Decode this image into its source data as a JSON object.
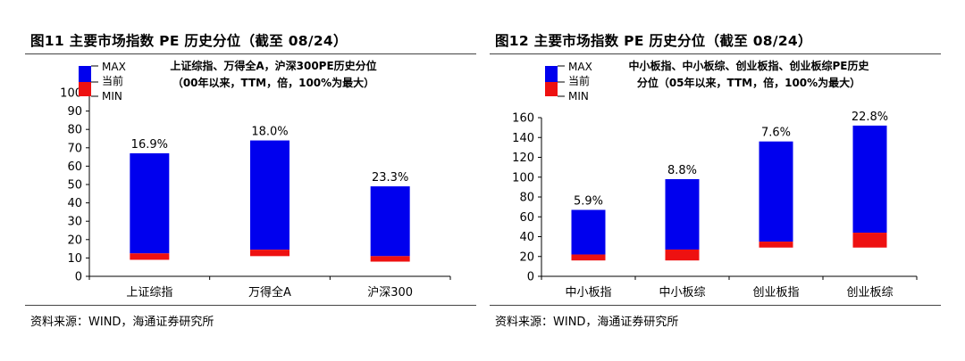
{
  "colors": {
    "max": "#0000EE",
    "min": "#EE1111",
    "axis": "#000000"
  },
  "chart_data": [
    {
      "type": "bar",
      "figure_title": "图11 主要市场指数 PE 历史分位（截至 08/24）",
      "source": "资料来源：WIND，海通证券研究所",
      "title_lines": [
        "上证综指、万得全A，沪深300PE历史分位",
        "（00年以来，TTM，倍，100%为最大）"
      ],
      "legend": [
        "MAX",
        "当前",
        "MIN"
      ],
      "categories": [
        "上证综指",
        "万得全A",
        "沪深300"
      ],
      "min_values": [
        9,
        11,
        8
      ],
      "current_values": [
        12.5,
        14.5,
        11
      ],
      "max_values": [
        67,
        74,
        49
      ],
      "percentile_labels": [
        "16.9%",
        "18.0%",
        "23.3%"
      ],
      "ylim": [
        0,
        100
      ],
      "yticks": [
        0,
        10,
        20,
        30,
        40,
        50,
        60,
        70,
        80,
        90,
        100
      ]
    },
    {
      "type": "bar",
      "figure_title": "图12 主要市场指数 PE 历史分位（截至 08/24）",
      "source": "资料来源：WIND，海通证券研究所",
      "title_lines": [
        "中小板指、中小板综、创业板指、创业板综PE历史",
        "分位（05年以来，TTM，倍，100%为最大）"
      ],
      "legend": [
        "MAX",
        "当前",
        "MIN"
      ],
      "categories": [
        "中小板指",
        "中小板综",
        "创业板指",
        "创业板综"
      ],
      "min_values": [
        16,
        16,
        29,
        29
      ],
      "current_values": [
        22,
        27,
        35,
        44
      ],
      "max_values": [
        67,
        98,
        136,
        152
      ],
      "percentile_labels": [
        "5.9%",
        "8.8%",
        "7.6%",
        "22.8%"
      ],
      "ylim": [
        0,
        160
      ],
      "yticks": [
        0,
        20,
        40,
        60,
        80,
        100,
        120,
        140,
        160
      ]
    }
  ]
}
